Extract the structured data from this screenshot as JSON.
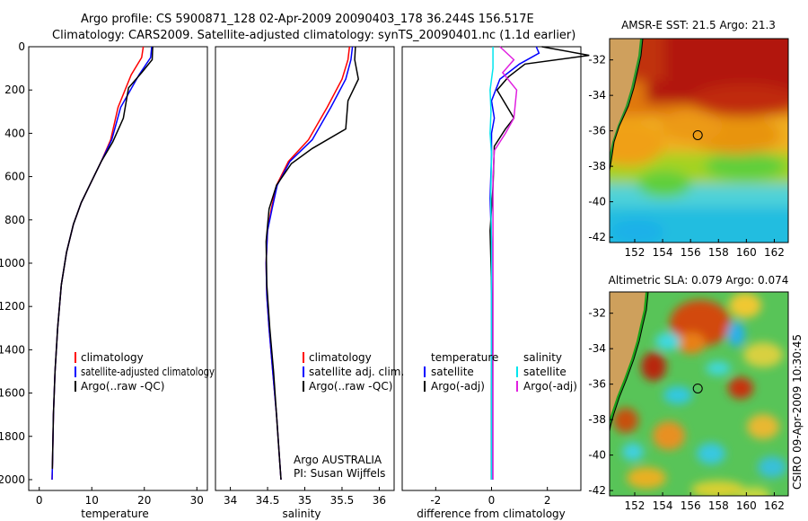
{
  "header": {
    "line1": "Argo profile: CS 5900871_128 02-Apr-2009 20090403_178 36.244S 156.517E",
    "line2": "Climatology: CARS2009. Satellite-adjusted climatology: synTS_20090401.nc (1.1d earlier)"
  },
  "colors": {
    "climatology": "#ff0000",
    "satellite": "#0000ff",
    "argo": "#000000",
    "sal_satellite": "#00e5ee",
    "sal_argo": "#e020e0"
  },
  "chart_data": [
    {
      "type": "line",
      "panel": "temperature",
      "xlabel": "temperature",
      "ylabel": "",
      "xlim": [
        -2,
        32
      ],
      "ylim": [
        2050,
        0
      ],
      "xticks": [
        0,
        10,
        20,
        30
      ],
      "yticks": [
        0,
        200,
        400,
        600,
        800,
        1000,
        1200,
        1400,
        1600,
        1800,
        2000
      ],
      "legend": [
        "climatology",
        "satellite-adjusted climatology",
        "Argo(..raw -QC)"
      ],
      "series": [
        {
          "name": "climatology",
          "x": [
            19.8,
            19.5,
            17.5,
            15.0,
            13.6,
            11.8,
            10.0,
            8.0,
            6.5,
            5.2,
            4.2,
            3.5,
            3.0,
            2.7,
            2.55,
            2.45
          ],
          "y": [
            0,
            50,
            130,
            280,
            430,
            530,
            620,
            720,
            820,
            950,
            1100,
            1300,
            1500,
            1700,
            1900,
            2000
          ]
        },
        {
          "name": "satellite-adjusted climatology",
          "x": [
            21.4,
            21.2,
            19.0,
            15.5,
            13.8,
            11.8,
            10.0,
            8.0,
            6.5,
            5.2,
            4.2,
            3.5,
            3.0,
            2.7,
            2.55,
            2.45
          ],
          "y": [
            0,
            50,
            130,
            280,
            430,
            530,
            620,
            720,
            820,
            950,
            1100,
            1300,
            1500,
            1700,
            1900,
            2000
          ]
        },
        {
          "name": "Argo(..raw -QC)",
          "x": [
            21.6,
            21.5,
            19.5,
            17.0,
            16.0,
            14.0,
            11.8,
            10.0,
            8.0,
            6.5,
            5.2,
            4.2,
            3.5,
            3.0,
            2.7,
            2.5
          ],
          "y": [
            0,
            60,
            120,
            190,
            330,
            440,
            530,
            620,
            720,
            820,
            950,
            1100,
            1300,
            1500,
            1700,
            1950
          ]
        }
      ]
    },
    {
      "type": "line",
      "panel": "salinity",
      "xlabel": "salinity",
      "xlim": [
        33.8,
        36.2
      ],
      "ylim": [
        2050,
        0
      ],
      "xticks": [
        34,
        34.5,
        35,
        35.5,
        36
      ],
      "legend": [
        "climatology",
        "satellite adj. clim.",
        "Argo(..raw -QC)"
      ],
      "annotation": [
        "Argo AUSTRALIA",
        "PI: Susan Wijffels"
      ],
      "series": [
        {
          "name": "climatology",
          "x": [
            35.6,
            35.58,
            35.5,
            35.3,
            35.05,
            34.78,
            34.62,
            34.55,
            34.5,
            34.48,
            34.49,
            34.52,
            34.57,
            34.62,
            34.66,
            34.68
          ],
          "y": [
            0,
            60,
            150,
            280,
            430,
            530,
            640,
            750,
            850,
            1000,
            1150,
            1300,
            1500,
            1700,
            1900,
            2000
          ]
        },
        {
          "name": "satellite adj. clim.",
          "x": [
            35.64,
            35.62,
            35.55,
            35.35,
            35.1,
            34.8,
            34.63,
            34.56,
            34.5,
            34.48,
            34.49,
            34.52,
            34.57,
            34.62,
            34.66,
            34.68
          ],
          "y": [
            0,
            60,
            150,
            280,
            430,
            530,
            640,
            750,
            850,
            1000,
            1150,
            1300,
            1500,
            1700,
            1900,
            2000
          ]
        },
        {
          "name": "Argo(..raw -QC)",
          "x": [
            35.68,
            35.67,
            35.72,
            35.58,
            35.55,
            35.1,
            34.82,
            34.62,
            34.52,
            34.48,
            34.49,
            34.53,
            34.58,
            34.62,
            34.66,
            34.68
          ],
          "y": [
            0,
            60,
            150,
            250,
            380,
            470,
            540,
            640,
            750,
            900,
            1100,
            1300,
            1500,
            1700,
            1900,
            2000
          ]
        }
      ]
    },
    {
      "type": "line",
      "panel": "difference",
      "xlabel": "difference from climatology",
      "xlim": [
        -3.2,
        3.2
      ],
      "ylim": [
        2050,
        0
      ],
      "xticks": [
        -2,
        0,
        2
      ],
      "legend_titles": [
        "temperature",
        "salinity"
      ],
      "legend_left": [
        "satellite",
        "Argo(-adj)"
      ],
      "legend_right": [
        "satellite",
        "Argo(-adj)"
      ],
      "series": [
        {
          "name": "temperature satellite",
          "x": [
            1.6,
            1.7,
            1.0,
            0.3,
            0.0,
            0.1,
            0.0,
            0.0,
            -0.05,
            0.0,
            0.0,
            0.0,
            0.0
          ],
          "y": [
            0,
            30,
            80,
            150,
            250,
            330,
            400,
            500,
            700,
            900,
            1200,
            1600,
            2000
          ]
        },
        {
          "name": "temperature Argo(-adj)",
          "x": [
            1.8,
            3.5,
            1.2,
            0.6,
            0.2,
            0.8,
            0.5,
            0.1,
            0.05,
            -0.05,
            0.02,
            0.0,
            0.0
          ],
          "y": [
            0,
            40,
            80,
            140,
            200,
            330,
            380,
            460,
            650,
            850,
            1200,
            1600,
            2000
          ]
        },
        {
          "name": "salinity satellite",
          "x": [
            0.05,
            0.05,
            -0.05,
            -0.02,
            -0.05,
            0.0,
            -0.03,
            0.0,
            0.0,
            0.0,
            0.0
          ],
          "y": [
            0,
            100,
            200,
            300,
            400,
            500,
            700,
            900,
            1200,
            1600,
            2000
          ]
        },
        {
          "name": "salinity Argo(-adj)",
          "x": [
            0.3,
            0.8,
            0.4,
            0.9,
            0.8,
            0.5,
            0.1,
            0.05,
            0.05,
            0.05,
            0.05
          ],
          "y": [
            0,
            60,
            120,
            200,
            330,
            400,
            480,
            600,
            900,
            1400,
            2000
          ]
        }
      ]
    }
  ],
  "maps": {
    "sst_title": "AMSR-E SST: 21.5 Argo: 21.3",
    "sla_title": "Altimetric SLA: 0.079 Argo: 0.074",
    "xticks": [
      "152",
      "154",
      "156",
      "158",
      "160",
      "162"
    ],
    "yticks_sst": [
      "-32",
      "-34",
      "-36",
      "-38",
      "-40",
      "-42"
    ],
    "yticks_sla": [
      "-32",
      "-34",
      "-36",
      "-38",
      "-40",
      "-42"
    ],
    "lon_range": [
      150.2,
      163.0
    ],
    "lat_range": [
      -42.3,
      -30.8
    ],
    "argo_position": {
      "lon": 156.517,
      "lat": -36.244
    }
  },
  "credit": "CSIRO 09-Apr-2009 10:30:45"
}
